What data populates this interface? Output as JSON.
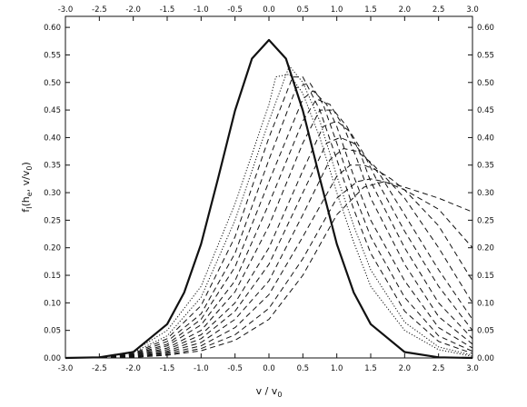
{
  "chart_data": {
    "type": "line",
    "title": "",
    "xlabel": "v / v",
    "xlabel_sub": "0",
    "ylabel_prefix": "f",
    "ylabel_sub1": "I",
    "ylabel_mid": "(h",
    "ylabel_sub2": "e",
    "ylabel_suffix": ", v/v",
    "ylabel_sub3": "0",
    "ylabel_close": ")",
    "xlim": [
      -3.0,
      3.0
    ],
    "ylim": [
      0.0,
      0.62
    ],
    "xticks": [
      "-3.0",
      "-2.5",
      "-2.0",
      "-1.5",
      "-1.0",
      "-0.5",
      "0.0",
      "0.5",
      "1.0",
      "1.5",
      "2.0",
      "2.5",
      "3.0"
    ],
    "yticks": [
      "0.00",
      "0.05",
      "0.10",
      "0.15",
      "0.20",
      "0.25",
      "0.30",
      "0.35",
      "0.40",
      "0.45",
      "0.50",
      "0.55",
      "0.60"
    ],
    "grid": false,
    "legend": "none",
    "series": [
      {
        "style": "solid",
        "x": [
          -3.0,
          -2.5,
          -2.0,
          -1.5,
          -1.25,
          -1.0,
          -0.75,
          -0.5,
          -0.25,
          0.0,
          0.25,
          0.5,
          0.75,
          1.0,
          1.25,
          1.5,
          2.0,
          2.5,
          3.0
        ],
        "y": [
          0.0,
          0.0011,
          0.0108,
          0.0614,
          0.1187,
          0.2068,
          0.3259,
          0.4492,
          0.5434,
          0.5772,
          0.5434,
          0.4492,
          0.3259,
          0.2068,
          0.1187,
          0.0614,
          0.0108,
          0.0011,
          0.0
        ]
      },
      {
        "style": "dotted",
        "x": [
          -3.0,
          -2.5,
          -2.0,
          -1.5,
          -1.0,
          -0.5,
          0.0,
          0.1,
          0.3,
          0.5,
          0.75,
          1.0,
          1.25,
          1.5,
          2.0,
          2.5,
          3.0
        ],
        "y": [
          0.0,
          0.0,
          0.012,
          0.05,
          0.13,
          0.28,
          0.46,
          0.51,
          0.515,
          0.48,
          0.4,
          0.3,
          0.21,
          0.13,
          0.05,
          0.015,
          0.003
        ]
      },
      {
        "style": "dotted",
        "x": [
          -3.0,
          -2.5,
          -2.0,
          -1.5,
          -1.0,
          -0.5,
          0.0,
          0.3,
          0.5,
          0.75,
          1.0,
          1.25,
          1.5,
          2.0,
          2.5,
          3.0
        ],
        "y": [
          0.0,
          0.0,
          0.01,
          0.04,
          0.11,
          0.25,
          0.43,
          0.53,
          0.5,
          0.43,
          0.33,
          0.24,
          0.16,
          0.065,
          0.02,
          0.005
        ]
      },
      {
        "style": "dashed",
        "x": [
          -3.0,
          -2.5,
          -2.0,
          -1.5,
          -1.0,
          -0.5,
          0.0,
          0.35,
          0.5,
          0.75,
          1.0,
          1.25,
          1.5,
          2.0,
          2.5,
          3.0
        ],
        "y": [
          0.0,
          0.0,
          0.008,
          0.035,
          0.095,
          0.22,
          0.4,
          0.51,
          0.51,
          0.45,
          0.36,
          0.27,
          0.19,
          0.085,
          0.03,
          0.008
        ]
      },
      {
        "style": "dashed",
        "x": [
          -3.0,
          -2.5,
          -2.0,
          -1.5,
          -1.0,
          -0.5,
          0.0,
          0.4,
          0.6,
          0.8,
          1.0,
          1.25,
          1.5,
          2.0,
          2.5,
          3.0
        ],
        "y": [
          0.0,
          0.0,
          0.007,
          0.03,
          0.08,
          0.19,
          0.36,
          0.49,
          0.5,
          0.46,
          0.39,
          0.3,
          0.22,
          0.11,
          0.04,
          0.012
        ]
      },
      {
        "style": "dashed",
        "x": [
          -3.0,
          -2.5,
          -2.0,
          -1.5,
          -1.0,
          -0.5,
          0.0,
          0.5,
          0.65,
          0.85,
          1.0,
          1.25,
          1.5,
          2.0,
          2.5,
          3.0
        ],
        "y": [
          0.0,
          0.0,
          0.006,
          0.025,
          0.07,
          0.165,
          0.32,
          0.47,
          0.485,
          0.46,
          0.42,
          0.33,
          0.25,
          0.14,
          0.055,
          0.018
        ]
      },
      {
        "style": "dashed",
        "x": [
          -3.0,
          -2.5,
          -2.0,
          -1.5,
          -1.0,
          -0.5,
          0.0,
          0.5,
          0.7,
          0.9,
          1.1,
          1.3,
          1.5,
          2.0,
          2.5,
          3.0
        ],
        "y": [
          0.0,
          0.0,
          0.005,
          0.022,
          0.06,
          0.14,
          0.28,
          0.43,
          0.47,
          0.46,
          0.42,
          0.36,
          0.29,
          0.17,
          0.075,
          0.025
        ]
      },
      {
        "style": "dashed",
        "x": [
          -3.0,
          -2.5,
          -2.0,
          -1.5,
          -1.0,
          -0.5,
          0.0,
          0.5,
          0.75,
          0.95,
          1.15,
          1.35,
          1.5,
          2.0,
          2.5,
          3.0
        ],
        "y": [
          0.0,
          0.0,
          0.004,
          0.018,
          0.05,
          0.12,
          0.24,
          0.39,
          0.45,
          0.45,
          0.42,
          0.37,
          0.32,
          0.2,
          0.1,
          0.035
        ]
      },
      {
        "style": "dashed",
        "x": [
          -3.0,
          -2.5,
          -2.0,
          -1.5,
          -1.0,
          -0.5,
          0.0,
          0.5,
          0.8,
          1.0,
          1.2,
          1.4,
          1.6,
          2.0,
          2.5,
          3.0
        ],
        "y": [
          0.0,
          0.0,
          0.004,
          0.015,
          0.042,
          0.1,
          0.2,
          0.34,
          0.42,
          0.43,
          0.41,
          0.37,
          0.32,
          0.23,
          0.13,
          0.05
        ]
      },
      {
        "style": "dashed",
        "x": [
          -3.0,
          -2.5,
          -2.0,
          -1.5,
          -1.0,
          -0.5,
          0.0,
          0.5,
          0.85,
          1.05,
          1.25,
          1.45,
          1.65,
          2.0,
          2.5,
          3.0
        ],
        "y": [
          0.0,
          0.0,
          0.003,
          0.012,
          0.035,
          0.085,
          0.17,
          0.3,
          0.39,
          0.4,
          0.39,
          0.36,
          0.33,
          0.26,
          0.16,
          0.07
        ]
      },
      {
        "style": "dashed",
        "x": [
          -3.0,
          -2.5,
          -2.0,
          -1.5,
          -1.0,
          -0.5,
          0.0,
          0.5,
          0.9,
          1.1,
          1.3,
          1.5,
          1.7,
          2.0,
          2.5,
          3.0
        ],
        "y": [
          0.0,
          0.0,
          0.002,
          0.01,
          0.028,
          0.07,
          0.14,
          0.26,
          0.36,
          0.38,
          0.375,
          0.355,
          0.33,
          0.29,
          0.2,
          0.1
        ]
      },
      {
        "style": "dashed",
        "x": [
          -3.0,
          -2.5,
          -2.0,
          -1.5,
          -1.0,
          -0.5,
          0.0,
          0.5,
          1.0,
          1.2,
          1.4,
          1.6,
          1.8,
          2.0,
          2.5,
          3.0
        ],
        "y": [
          0.0,
          0.0,
          0.002,
          0.008,
          0.022,
          0.055,
          0.115,
          0.22,
          0.33,
          0.35,
          0.35,
          0.34,
          0.325,
          0.305,
          0.24,
          0.14
        ]
      },
      {
        "style": "dashed",
        "x": [
          -3.0,
          -2.5,
          -2.0,
          -1.5,
          -1.0,
          -0.5,
          0.0,
          0.5,
          1.0,
          1.3,
          1.5,
          1.7,
          2.0,
          2.5,
          3.0
        ],
        "y": [
          0.0,
          0.0,
          0.001,
          0.006,
          0.017,
          0.042,
          0.09,
          0.18,
          0.29,
          0.32,
          0.325,
          0.32,
          0.305,
          0.27,
          0.2
        ]
      },
      {
        "style": "dashed",
        "x": [
          -3.0,
          -2.5,
          -2.0,
          -1.5,
          -1.0,
          -0.5,
          0.0,
          0.5,
          1.0,
          1.4,
          1.7,
          2.0,
          2.5,
          3.0
        ],
        "y": [
          0.0,
          0.0,
          0.001,
          0.005,
          0.013,
          0.032,
          0.07,
          0.15,
          0.26,
          0.31,
          0.32,
          0.31,
          0.29,
          0.265
        ]
      }
    ]
  }
}
